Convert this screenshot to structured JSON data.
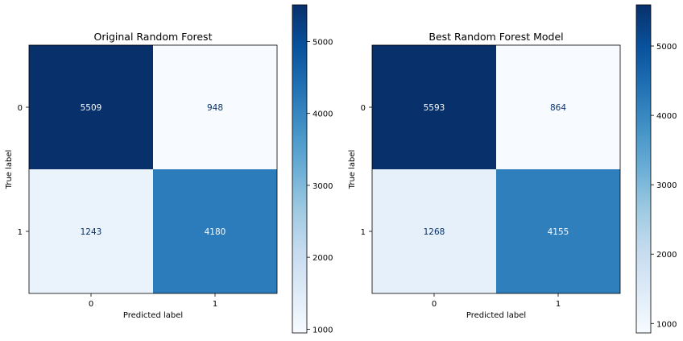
{
  "chart_data": [
    {
      "type": "heatmap",
      "title": "Original Random Forest",
      "xlabel": "Predicted label",
      "ylabel": "True label",
      "x_categories": [
        "0",
        "1"
      ],
      "y_categories": [
        "0",
        "1"
      ],
      "values": [
        [
          5509,
          948
        ],
        [
          1243,
          4180
        ]
      ],
      "colormap": "Blues",
      "colorbar": {
        "range": [
          948,
          5509
        ],
        "ticks": [
          1000,
          2000,
          3000,
          4000,
          5000
        ]
      }
    },
    {
      "type": "heatmap",
      "title": "Best Random Forest Model",
      "xlabel": "Predicted label",
      "ylabel": "True label",
      "x_categories": [
        "0",
        "1"
      ],
      "y_categories": [
        "0",
        "1"
      ],
      "values": [
        [
          5593,
          864
        ],
        [
          1268,
          4155
        ]
      ],
      "colormap": "Blues",
      "colorbar": {
        "range": [
          864,
          5593
        ],
        "ticks": [
          1000,
          2000,
          3000,
          4000,
          5000
        ]
      }
    }
  ]
}
